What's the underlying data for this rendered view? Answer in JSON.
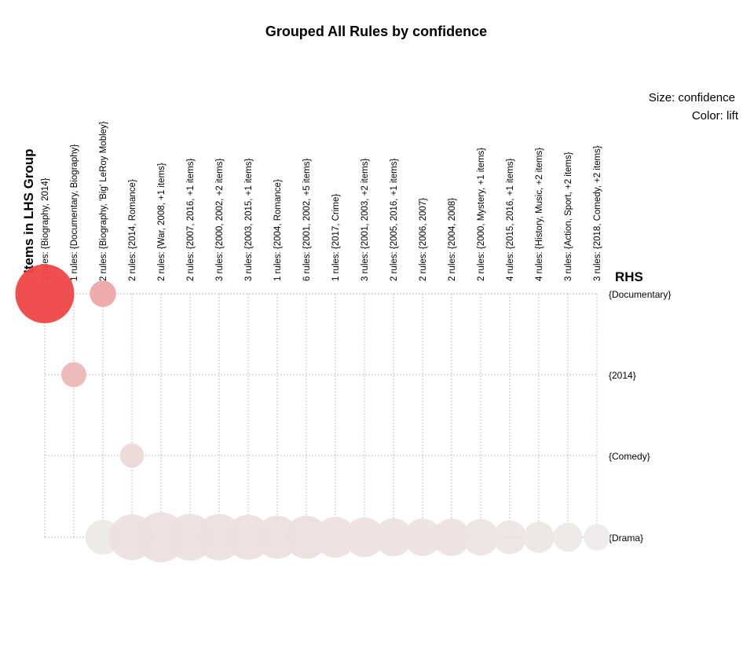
{
  "chart_data": {
    "type": "scatter",
    "title": "Grouped All Rules by confidence",
    "legend": {
      "size": "Size: confidence",
      "color": "Color: lift",
      "placement": "top-right"
    },
    "xlabel": "Items in LHS Group",
    "ylabel": "RHS",
    "grid": true,
    "lhs_groups": [
      "1 rules: {Biography, 2014}",
      "1 rules: {Documentary, Biography}",
      "2 rules: {Biography, 'Big' LeRoy Mobley}",
      "2 rules: {2014, Romance}",
      "2 rules: {War, 2008, +1 items}",
      "2 rules: {2007, 2016, +1 items}",
      "3 rules: {2000, 2002, +2 items}",
      "3 rules: {2003, 2015, +1 items}",
      "1 rules: {2004, Romance}",
      "6 rules: {2001, 2002, +5 items}",
      "1 rules: {2017, Crime}",
      "3 rules: {2001, 2003, +2 items}",
      "2 rules: {2005, 2016, +1 items}",
      "2 rules: {2006, 2007}",
      "2 rules: {2004, 2008}",
      "2 rules: {2000, Mystery, +1 items}",
      "4 rules: {2015, 2016, +1 items}",
      "4 rules: {History, Music, +2 items}",
      "3 rules: {Action, Sport, +2 items}",
      "3 rules: {2018, Comedy, +2 items}"
    ],
    "rhs_items": [
      "{Documentary}",
      "{2014}",
      "{Comedy}",
      "{Drama}"
    ],
    "points": [
      {
        "lhs": 0,
        "rhs": 0,
        "confidence": 1.0,
        "lift": 1.0
      },
      {
        "lhs": 2,
        "rhs": 0,
        "confidence": 0.2,
        "lift": 0.42
      },
      {
        "lhs": 1,
        "rhs": 1,
        "confidence": 0.18,
        "lift": 0.32
      },
      {
        "lhs": 3,
        "rhs": 2,
        "confidence": 0.17,
        "lift": 0.12
      },
      {
        "lhs": 2,
        "rhs": 3,
        "confidence": 0.35,
        "lift": 0.02
      },
      {
        "lhs": 3,
        "rhs": 3,
        "confidence": 0.6,
        "lift": 0.07
      },
      {
        "lhs": 4,
        "rhs": 3,
        "confidence": 0.72,
        "lift": 0.08
      },
      {
        "lhs": 5,
        "rhs": 3,
        "confidence": 0.63,
        "lift": 0.07
      },
      {
        "lhs": 6,
        "rhs": 3,
        "confidence": 0.62,
        "lift": 0.07
      },
      {
        "lhs": 7,
        "rhs": 3,
        "confidence": 0.58,
        "lift": 0.07
      },
      {
        "lhs": 8,
        "rhs": 3,
        "confidence": 0.53,
        "lift": 0.07
      },
      {
        "lhs": 9,
        "rhs": 3,
        "confidence": 0.53,
        "lift": 0.07
      },
      {
        "lhs": 10,
        "rhs": 3,
        "confidence": 0.48,
        "lift": 0.06
      },
      {
        "lhs": 11,
        "rhs": 3,
        "confidence": 0.45,
        "lift": 0.06
      },
      {
        "lhs": 12,
        "rhs": 3,
        "confidence": 0.42,
        "lift": 0.06
      },
      {
        "lhs": 13,
        "rhs": 3,
        "confidence": 0.4,
        "lift": 0.06
      },
      {
        "lhs": 14,
        "rhs": 3,
        "confidence": 0.4,
        "lift": 0.06
      },
      {
        "lhs": 15,
        "rhs": 3,
        "confidence": 0.38,
        "lift": 0.05
      },
      {
        "lhs": 16,
        "rhs": 3,
        "confidence": 0.33,
        "lift": 0.04
      },
      {
        "lhs": 17,
        "rhs": 3,
        "confidence": 0.28,
        "lift": 0.03
      },
      {
        "lhs": 18,
        "rhs": 3,
        "confidence": 0.24,
        "lift": 0.02
      },
      {
        "lhs": 19,
        "rhs": 3,
        "confidence": 0.2,
        "lift": 0.01
      }
    ],
    "colors": {
      "high_lift": "#ee4646",
      "low_lift": "#ececec",
      "grid": "#bdbdbd"
    }
  }
}
